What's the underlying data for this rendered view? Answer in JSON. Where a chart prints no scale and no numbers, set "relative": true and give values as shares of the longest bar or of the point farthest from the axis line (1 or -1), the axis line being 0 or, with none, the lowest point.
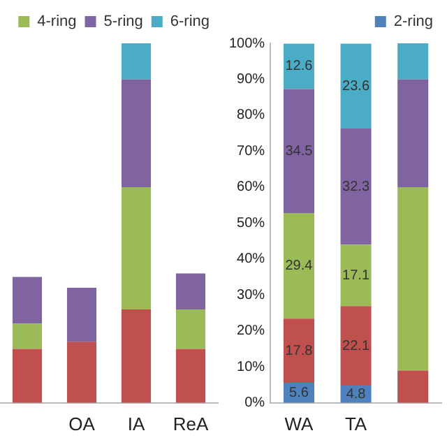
{
  "chart_data": [
    {
      "type": "bar",
      "stacked": true,
      "relative": true,
      "legend": "top",
      "grid": false,
      "categories": [
        null,
        "OA",
        "IA",
        "ReA"
      ],
      "series": [
        {
          "color": "#c0504d",
          "values": [
            0.15,
            0.17,
            0.26,
            0.15
          ]
        },
        {
          "name": "4-ring",
          "color": "#9bbb59",
          "values": [
            0.07,
            0,
            0.34,
            0.11
          ]
        },
        {
          "name": "5-ring",
          "color": "#8064a2",
          "values": [
            0.13,
            0.15,
            0.3,
            0.1
          ]
        },
        {
          "name": "6-ring",
          "color": "#4bacc6",
          "values": [
            0,
            0,
            0.1,
            0
          ]
        }
      ]
    },
    {
      "type": "bar",
      "stacked": true,
      "legend": "top",
      "grid": false,
      "categories": [
        "WA",
        "TA",
        null
      ],
      "ylim": [
        0,
        100
      ],
      "yticks": [
        {
          "value": 0,
          "label": "0%"
        },
        {
          "value": 10,
          "label": "10%"
        },
        {
          "value": 20,
          "label": "20%"
        },
        {
          "value": 30,
          "label": "30%"
        },
        {
          "value": 40,
          "label": "40%"
        },
        {
          "value": 50,
          "label": "50%"
        },
        {
          "value": 60,
          "label": "60%"
        },
        {
          "value": 70,
          "label": "70%"
        },
        {
          "value": 80,
          "label": "80%"
        },
        {
          "value": 90,
          "label": "90%"
        },
        {
          "value": 100,
          "label": "100%"
        }
      ],
      "series": [
        {
          "name": "2-ring",
          "color": "#4f81bd",
          "values": [
            5.6,
            4.8,
            0
          ],
          "value_labels": [
            "5.6",
            "4.8",
            null
          ]
        },
        {
          "color": "#c0504d",
          "values": [
            17.8,
            22.1,
            9
          ],
          "value_labels": [
            "17.8",
            "22.1",
            null
          ]
        },
        {
          "color": "#9bbb59",
          "values": [
            29.4,
            17.1,
            51
          ],
          "value_labels": [
            "29.4",
            "17.1",
            null
          ]
        },
        {
          "color": "#8064a2",
          "values": [
            34.5,
            32.3,
            30
          ],
          "value_labels": [
            "34.5",
            "32.3",
            null
          ]
        },
        {
          "color": "#4bacc6",
          "values": [
            12.6,
            23.6,
            10
          ],
          "value_labels": [
            "12.6",
            "23.6",
            null
          ]
        }
      ]
    }
  ]
}
